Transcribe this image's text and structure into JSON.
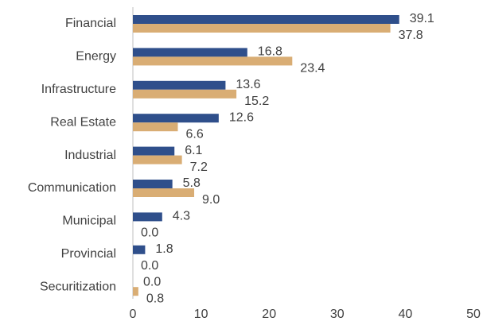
{
  "chart_data": {
    "type": "hbar",
    "categories": [
      "Financial",
      "Energy",
      "Infrastructure",
      "Real Estate",
      "Industrial",
      "Communication",
      "Municipal",
      "Provincial",
      "Securitization"
    ],
    "series": [
      {
        "color": "#2f4f8b",
        "values": [
          39.1,
          16.8,
          13.6,
          12.6,
          6.1,
          5.8,
          4.3,
          1.8,
          0.0
        ],
        "value_labels": [
          "39.1",
          "16.8",
          "13.6",
          "12.6",
          "6.1",
          "5.8",
          "4.3",
          "1.8",
          "0.0"
        ]
      },
      {
        "color": "#d9ad74",
        "values": [
          37.8,
          23.4,
          15.2,
          6.6,
          7.2,
          9.0,
          0.0,
          0.0,
          0.8
        ],
        "value_labels": [
          "37.8",
          "23.4",
          "15.2",
          "6.6",
          "7.2",
          "9.0",
          "0.0",
          "0.0",
          "0.8"
        ]
      }
    ],
    "xlim": [
      0,
      50
    ],
    "xticks": [
      0,
      10,
      20,
      30,
      40,
      50
    ],
    "grid": false
  }
}
